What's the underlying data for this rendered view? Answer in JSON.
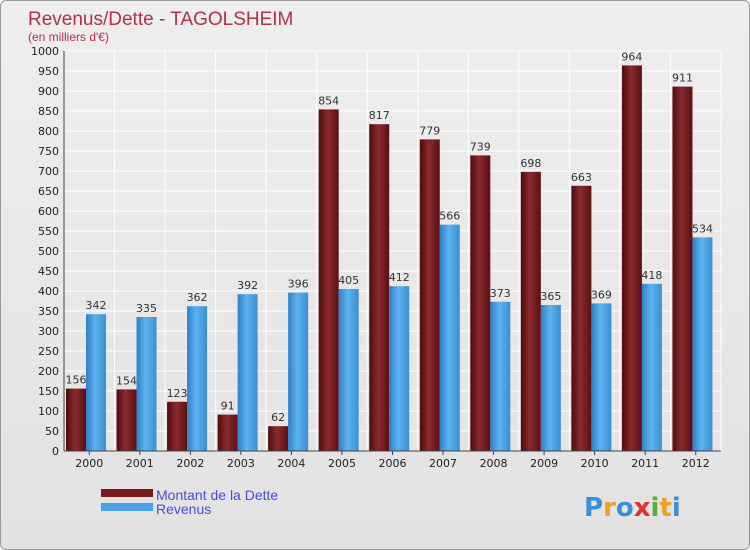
{
  "chart_data": {
    "type": "bar",
    "title": "Revenus/Dette - TAGOLSHEIM",
    "subtitle": "(en milliers d'€)",
    "categories": [
      "2000",
      "2001",
      "2002",
      "2003",
      "2004",
      "2005",
      "2006",
      "2007",
      "2008",
      "2009",
      "2010",
      "2011",
      "2012"
    ],
    "series": [
      {
        "name": "Montant de la Dette",
        "color": "#7a1a1e",
        "values": [
          156,
          154,
          123,
          91,
          62,
          854,
          817,
          779,
          739,
          698,
          663,
          964,
          911
        ]
      },
      {
        "name": "Revenus",
        "color": "#4aa3e6",
        "values": [
          342,
          335,
          362,
          392,
          396,
          405,
          412,
          566,
          373,
          365,
          369,
          418,
          534
        ]
      }
    ],
    "ylim": [
      0,
      1000
    ],
    "ytick_step": 50,
    "grid": true,
    "legend_position": "bottom-left"
  },
  "branding": {
    "logo_text": "Proxiti"
  }
}
